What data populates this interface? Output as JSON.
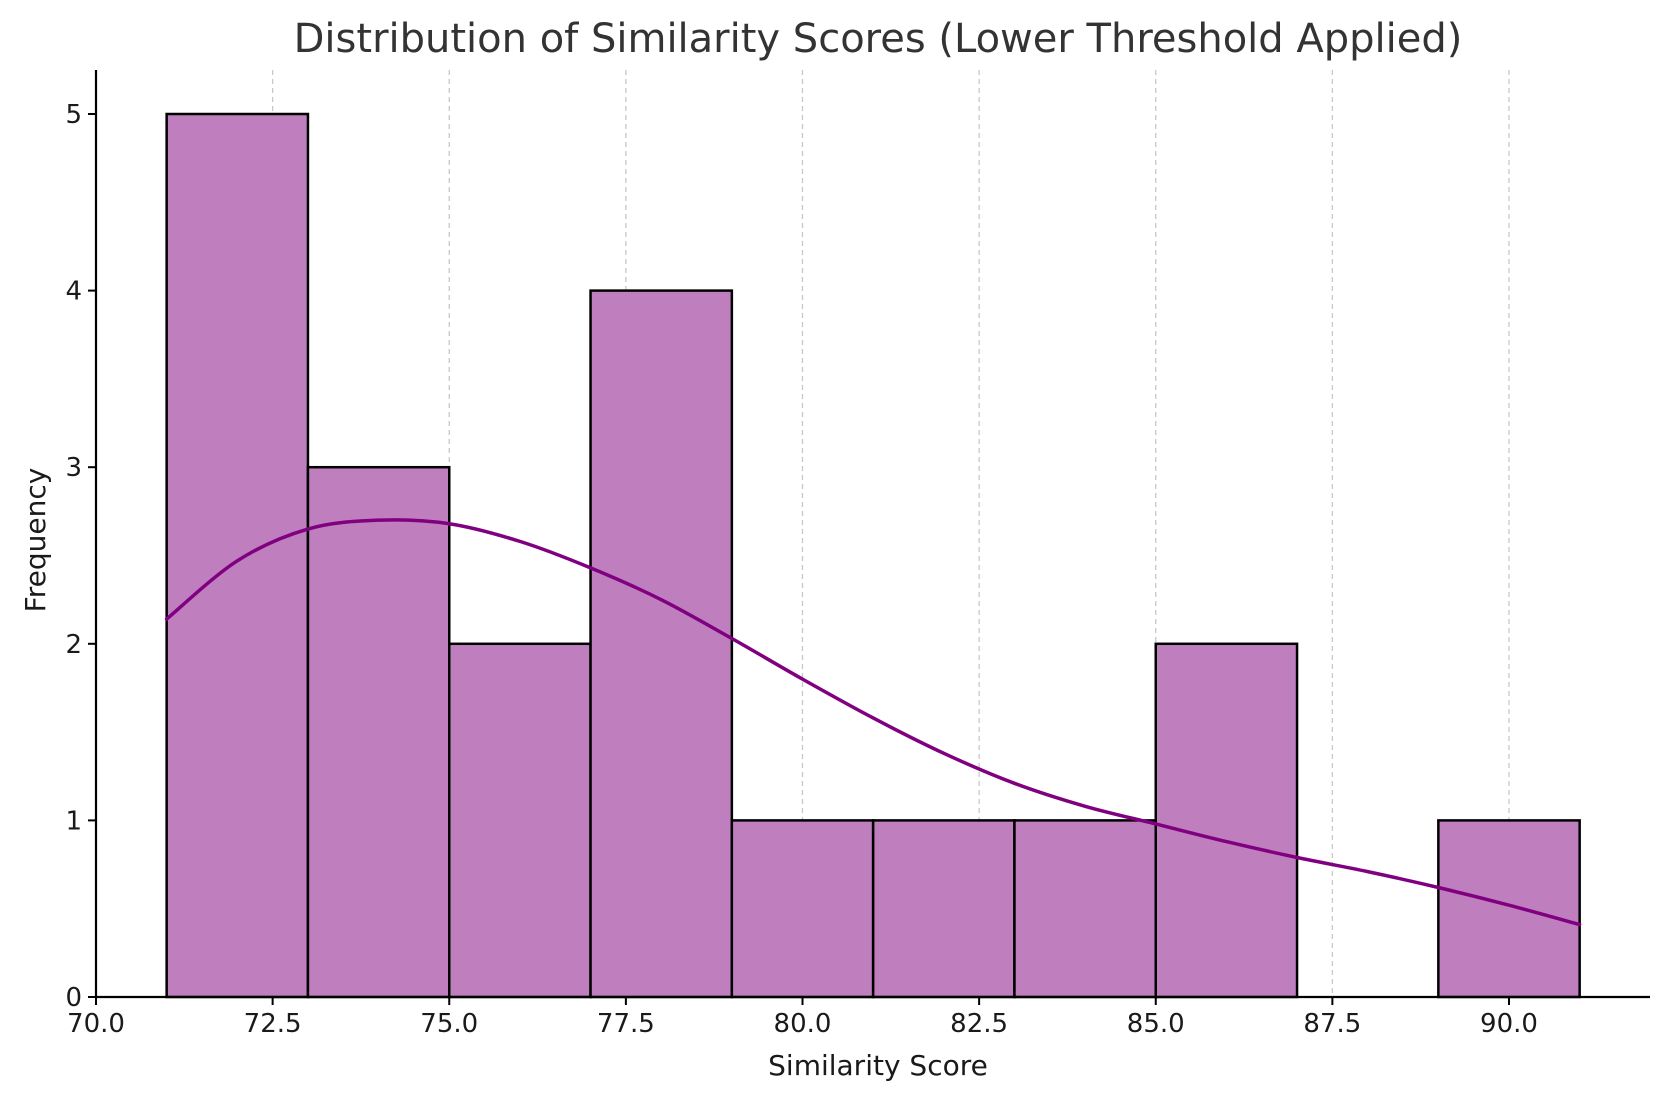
{
  "chart_data": {
    "type": "bar",
    "title": "Distribution of Similarity Scores (Lower Threshold Applied)",
    "xlabel": "Similarity Score",
    "ylabel": "Frequency",
    "xlim": [
      70.0,
      92.0
    ],
    "ylim": [
      0,
      5.25
    ],
    "xticks": [
      70.0,
      72.5,
      75.0,
      77.5,
      80.0,
      82.5,
      85.0,
      87.5,
      90.0
    ],
    "xtick_labels": [
      "70.0",
      "72.5",
      "75.0",
      "77.5",
      "80.0",
      "82.5",
      "85.0",
      "87.5",
      "90.0"
    ],
    "yticks": [
      0,
      1,
      2,
      3,
      4,
      5
    ],
    "ytick_labels": [
      "0",
      "1",
      "2",
      "3",
      "4",
      "5"
    ],
    "grid": "vertical dashed",
    "bins": [
      {
        "start": 71.0,
        "end": 73.0,
        "count": 5
      },
      {
        "start": 73.0,
        "end": 75.0,
        "count": 3
      },
      {
        "start": 75.0,
        "end": 77.0,
        "count": 2
      },
      {
        "start": 77.0,
        "end": 79.0,
        "count": 4
      },
      {
        "start": 79.0,
        "end": 81.0,
        "count": 1
      },
      {
        "start": 81.0,
        "end": 83.0,
        "count": 1
      },
      {
        "start": 83.0,
        "end": 85.0,
        "count": 1
      },
      {
        "start": 85.0,
        "end": 87.0,
        "count": 2
      },
      {
        "start": 87.0,
        "end": 89.0,
        "count": 0
      },
      {
        "start": 89.0,
        "end": 91.0,
        "count": 1
      }
    ],
    "kde": {
      "x": [
        71.0,
        72.0,
        73.0,
        74.0,
        75.0,
        76.0,
        77.0,
        78.0,
        79.0,
        80.0,
        81.0,
        82.0,
        83.0,
        84.0,
        85.0,
        86.0,
        87.0,
        88.0,
        89.0,
        90.0,
        91.0
      ],
      "y": [
        2.14,
        2.47,
        2.65,
        2.7,
        2.68,
        2.58,
        2.43,
        2.25,
        2.03,
        1.8,
        1.58,
        1.38,
        1.21,
        1.08,
        0.98,
        0.88,
        0.79,
        0.71,
        0.62,
        0.52,
        0.41
      ]
    },
    "colors": {
      "bar_fill": "#bf7fbf",
      "bar_edge": "#000000",
      "kde_line": "#800080",
      "grid": "#c8c8c8"
    }
  }
}
